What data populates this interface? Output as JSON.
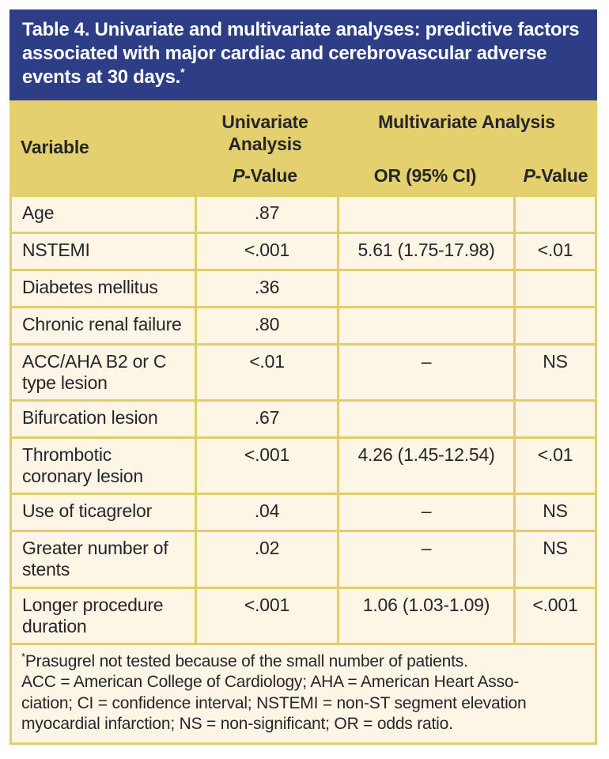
{
  "colors": {
    "title_bg": "#2d3e87",
    "title_text": "#ffffff",
    "header_bg": "#e4d06f",
    "row_bg": "#fdf6e7",
    "grid": "#e2cd6b",
    "text": "#26262a"
  },
  "title": {
    "text": "Table 4. Univariate and multivariate analyses: predictive factors associated with major cardiac and cerebrovascular adverse events at 30 days.",
    "superscript": "*"
  },
  "table": {
    "header": {
      "variable": "Variable",
      "univariate_group": "Univariate Analysis",
      "multivariate_group": "Multivariate Analysis",
      "univariate_p_label": "P-Value",
      "or_label": "OR (95% CI)",
      "multivariate_p_label": "P-Value"
    },
    "rows": [
      {
        "variable": "Age",
        "univariate_p": ".87",
        "or_ci": "",
        "multivariate_p": ""
      },
      {
        "variable": "NSTEMI",
        "univariate_p": "<.001",
        "or_ci": "5.61 (1.75-17.98)",
        "multivariate_p": "<.01"
      },
      {
        "variable": "Diabetes mellitus",
        "univariate_p": ".36",
        "or_ci": "",
        "multivariate_p": ""
      },
      {
        "variable": "Chronic renal failure",
        "univariate_p": ".80",
        "or_ci": "",
        "multivariate_p": ""
      },
      {
        "variable": "ACC/AHA B2 or C type lesion",
        "univariate_p": "<.01",
        "or_ci": "–",
        "multivariate_p": "NS"
      },
      {
        "variable": "Bifurcation lesion",
        "univariate_p": ".67",
        "or_ci": "",
        "multivariate_p": ""
      },
      {
        "variable": "Thrombotic coronary lesion",
        "univariate_p": "<.001",
        "or_ci": "4.26 (1.45-12.54)",
        "multivariate_p": "<.01"
      },
      {
        "variable": "Use of ticagrelor",
        "univariate_p": ".04",
        "or_ci": "–",
        "multivariate_p": "NS"
      },
      {
        "variable": "Greater number of stents",
        "univariate_p": ".02",
        "or_ci": "–",
        "multivariate_p": "NS"
      },
      {
        "variable": "Longer procedure duration",
        "univariate_p": "<.001",
        "or_ci": "1.06 (1.03-1.09)",
        "multivariate_p": "<.001"
      }
    ]
  },
  "footnote": {
    "symbol": "*",
    "lines": [
      "Prasugrel not tested because of the small number of patients.",
      "ACC = American College of Cardiology; AHA = American Heart Asso-",
      "ciation; CI = confidence interval; NSTEMI = non-ST segment elevation",
      "myocardial infarction; NS = non-significant; OR = odds ratio."
    ]
  }
}
